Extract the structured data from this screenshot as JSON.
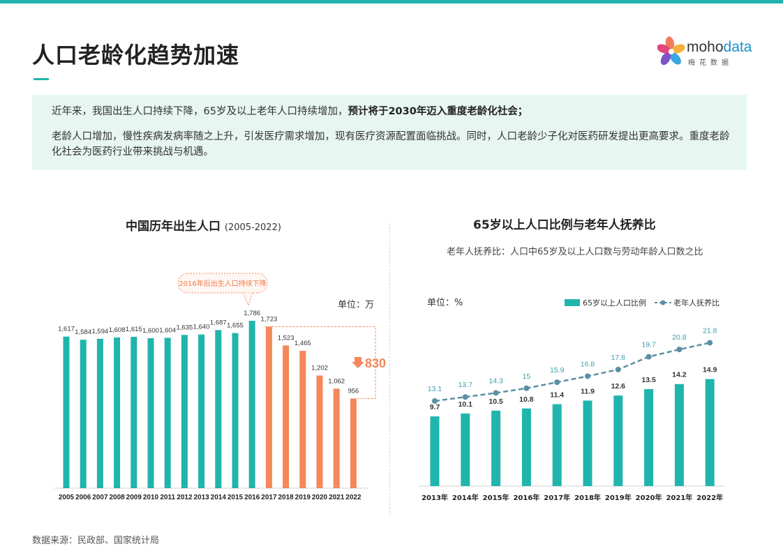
{
  "page": {
    "title": "人口老龄化趋势加速",
    "logo": {
      "brand_a": "moho",
      "brand_b": "data",
      "sub": "梅花数据"
    },
    "intro": {
      "line1_normal": "近年来，我国出生人口持续下降，65岁及以上老年人口持续增加，",
      "line1_bold": "预计将于2030年迈入重度老龄化社会；",
      "line2": "老龄人口增加，慢性疾病发病率随之上升，引发医疗需求增加，现有医疗资源配置面临挑战。同时，人口老龄少子化对医药研发提出更高要求。重度老龄化社会为医药行业带来挑战与机遇。"
    },
    "source": "数据来源：民政部、国家统计局",
    "colors": {
      "teal": "#1fb5ad",
      "orange": "#f5875a",
      "line": "#5b8fa3",
      "bg_intro": "#e7f6f1"
    }
  },
  "chart_data": [
    {
      "type": "bar",
      "title": "中国历年出生人口",
      "title_suffix": "(2005-2022)",
      "unit": "单位：万",
      "callout": "2016年后出生人口持续下降",
      "drop_label": "830",
      "categories": [
        "2005",
        "2006",
        "2007",
        "2008",
        "2009",
        "2010",
        "2011",
        "2012",
        "2013",
        "2014",
        "2015",
        "2016",
        "2017",
        "2018",
        "2019",
        "2020",
        "2021",
        "2022"
      ],
      "values": [
        1617,
        1584,
        1594,
        1608,
        1615,
        1600,
        1604,
        1635,
        1640,
        1687,
        1655,
        1786,
        1723,
        1523,
        1465,
        1202,
        1062,
        956
      ],
      "value_labels": [
        "1,617",
        "1,584",
        "1,594",
        "1,608",
        "1,615",
        "1,600",
        "1,604",
        "1,635",
        "1,640",
        "1,687",
        "1,655",
        "1,786",
        "1,723",
        "1,523",
        "1,465",
        "1,202",
        "1,062",
        "956"
      ],
      "highlight_from_index": 12,
      "ylim": [
        0,
        1850
      ]
    },
    {
      "type": "bar+line",
      "title": "65岁以上人口比例与老年人抚养比",
      "subtitle": "老年人抚养比：人口中65岁及以上人口数与劳动年龄人口数之比",
      "unit": "单位：%",
      "categories": [
        "2013年",
        "2014年",
        "2015年",
        "2016年",
        "2017年",
        "2018年",
        "2019年",
        "2020年",
        "2021年",
        "2022年"
      ],
      "series": [
        {
          "name": "65岁以上人口比例",
          "kind": "bar",
          "values": [
            9.7,
            10.1,
            10.5,
            10.8,
            11.4,
            11.9,
            12.6,
            13.5,
            14.2,
            14.9
          ]
        },
        {
          "name": "老年人抚养比",
          "kind": "line",
          "values": [
            13.1,
            13.7,
            14.3,
            15.0,
            15.9,
            16.8,
            17.8,
            19.7,
            20.8,
            21.8
          ]
        }
      ],
      "ylim": [
        0,
        25
      ]
    }
  ]
}
